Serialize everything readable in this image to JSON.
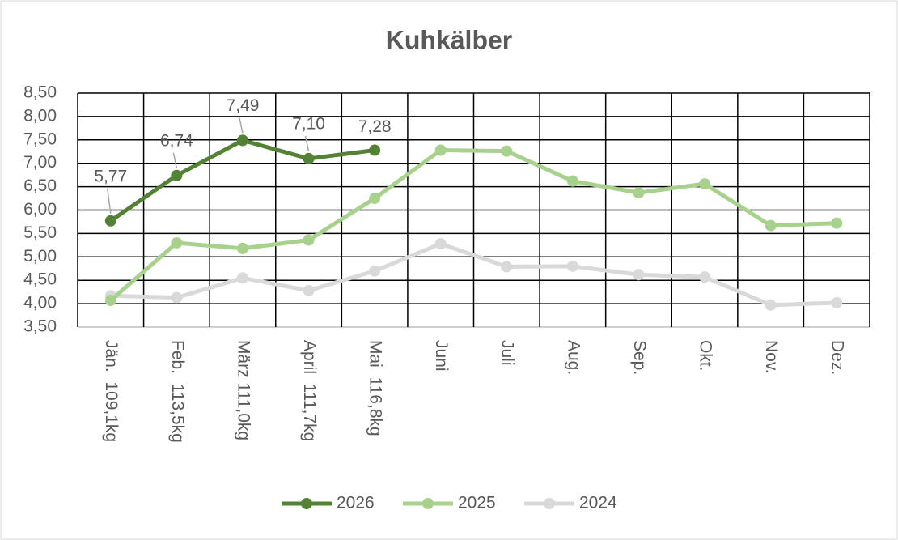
{
  "chart_data": {
    "type": "line",
    "title": "Kuhkälber",
    "categories": [
      "Jän.  109,1kg",
      "Feb.  113,5kg",
      "März 111,0kg",
      "April  111,7kg",
      "Mai  116,8kg",
      "Juni",
      "Juli",
      "Aug.",
      "Sep.",
      "Okt.",
      "Nov.",
      "Dez."
    ],
    "series": [
      {
        "name": "2026",
        "color": "#548235",
        "values": [
          5.77,
          6.74,
          7.49,
          7.1,
          7.28,
          null,
          null,
          null,
          null,
          null,
          null,
          null
        ],
        "value_labels": [
          "5,77",
          "6,74",
          "7,49",
          "7,10",
          "7,28",
          null,
          null,
          null,
          null,
          null,
          null,
          null
        ]
      },
      {
        "name": "2025",
        "color": "#a9d18e",
        "values": [
          4.07,
          5.3,
          5.18,
          5.36,
          6.25,
          7.28,
          7.26,
          6.62,
          6.37,
          6.56,
          5.67,
          5.72
        ]
      },
      {
        "name": "2024",
        "color": "#d9d9d9",
        "values": [
          4.17,
          4.13,
          4.55,
          4.28,
          4.7,
          5.28,
          4.79,
          4.8,
          4.62,
          4.57,
          3.97,
          4.02
        ]
      }
    ],
    "ylim": [
      3.5,
      8.5
    ],
    "yticks": [
      {
        "value": 3.5,
        "label": "3,50"
      },
      {
        "value": 4,
        "label": "4,00"
      },
      {
        "value": 4.5,
        "label": "4,50"
      },
      {
        "value": 5,
        "label": "5,00"
      },
      {
        "value": 5.5,
        "label": "5,50"
      },
      {
        "value": 6,
        "label": "6,00"
      },
      {
        "value": 6.5,
        "label": "6,50"
      },
      {
        "value": 7,
        "label": "7,00"
      },
      {
        "value": 7.5,
        "label": "7,50"
      },
      {
        "value": 8,
        "label": "8,00"
      },
      {
        "value": 8.5,
        "label": "8,50"
      }
    ],
    "grid": true,
    "legend": "bottom"
  }
}
